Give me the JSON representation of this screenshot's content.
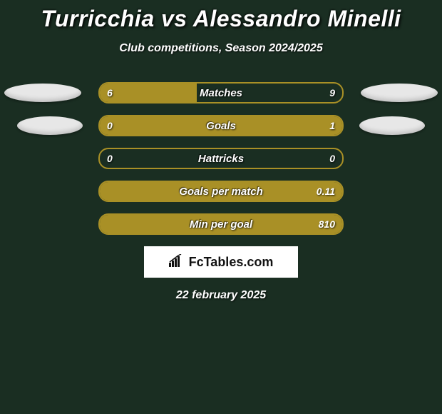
{
  "title": "Turricchia vs Alessandro Minelli",
  "subtitle": "Club competitions, Season 2024/2025",
  "date": "22 february 2025",
  "branding": "FcTables.com",
  "colors": {
    "background": "#1a2e22",
    "bar_border": "#a99026",
    "bar_fill": "#a99026",
    "ellipse": "#e7e7e7",
    "text": "#ffffff"
  },
  "rows": [
    {
      "label": "Matches",
      "left_value": "6",
      "right_value": "9",
      "left_fill_pct": 40,
      "right_fill_pct": 0,
      "show_ellipses": true
    },
    {
      "label": "Goals",
      "left_value": "0",
      "right_value": "1",
      "left_fill_pct": 0,
      "right_fill_pct": 100,
      "show_ellipses": true
    },
    {
      "label": "Hattricks",
      "left_value": "0",
      "right_value": "0",
      "left_fill_pct": 0,
      "right_fill_pct": 0,
      "show_ellipses": false
    },
    {
      "label": "Goals per match",
      "left_value": "",
      "right_value": "0.11",
      "left_fill_pct": 0,
      "right_fill_pct": 100,
      "show_ellipses": false
    },
    {
      "label": "Min per goal",
      "left_value": "",
      "right_value": "810",
      "left_fill_pct": 0,
      "right_fill_pct": 100,
      "show_ellipses": false
    }
  ]
}
